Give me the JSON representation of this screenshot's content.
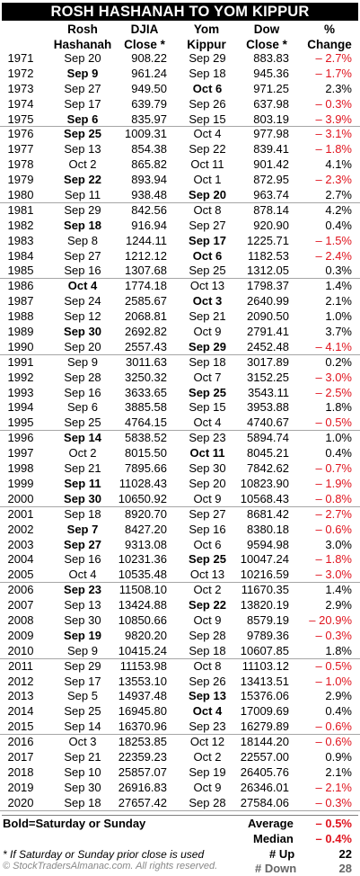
{
  "title": "ROSH HASHANAH TO YOM KIPPUR",
  "headers": {
    "year": "",
    "rosh_line1": "Rosh",
    "rosh_line2": "Hashanah",
    "djia_line1": "DJIA",
    "djia_line2": "Close *",
    "yom_line1": "Yom",
    "yom_line2": "Kippur",
    "dow_line1": "Dow",
    "dow_line2": "Close *",
    "pct_line1": "%",
    "pct_line2": "Change"
  },
  "rows": [
    {
      "year": "1971",
      "rosh": "Sep 20",
      "rosh_bold": false,
      "djia": "908.22",
      "yom": "Sep 29",
      "yom_bold": false,
      "dow": "883.83",
      "pct": "– 2.7%",
      "neg": true
    },
    {
      "year": "1972",
      "rosh": "Sep 9",
      "rosh_bold": true,
      "djia": "961.24",
      "yom": "Sep 18",
      "yom_bold": false,
      "dow": "945.36",
      "pct": "– 1.7%",
      "neg": true
    },
    {
      "year": "1973",
      "rosh": "Sep 27",
      "rosh_bold": false,
      "djia": "949.50",
      "yom": "Oct 6",
      "yom_bold": true,
      "dow": "971.25",
      "pct": "2.3%",
      "neg": false
    },
    {
      "year": "1974",
      "rosh": "Sep 17",
      "rosh_bold": false,
      "djia": "639.79",
      "yom": "Sep 26",
      "yom_bold": false,
      "dow": "637.98",
      "pct": "– 0.3%",
      "neg": true
    },
    {
      "year": "1975",
      "rosh": "Sep 6",
      "rosh_bold": true,
      "djia": "835.97",
      "yom": "Sep 15",
      "yom_bold": false,
      "dow": "803.19",
      "pct": "– 3.9%",
      "neg": true
    },
    {
      "year": "1976",
      "rosh": "Sep 25",
      "rosh_bold": true,
      "djia": "1009.31",
      "yom": "Oct 4",
      "yom_bold": false,
      "dow": "977.98",
      "pct": "– 3.1%",
      "neg": true
    },
    {
      "year": "1977",
      "rosh": "Sep 13",
      "rosh_bold": false,
      "djia": "854.38",
      "yom": "Sep 22",
      "yom_bold": false,
      "dow": "839.41",
      "pct": "– 1.8%",
      "neg": true
    },
    {
      "year": "1978",
      "rosh": "Oct 2",
      "rosh_bold": false,
      "djia": "865.82",
      "yom": "Oct 11",
      "yom_bold": false,
      "dow": "901.42",
      "pct": "4.1%",
      "neg": false
    },
    {
      "year": "1979",
      "rosh": "Sep 22",
      "rosh_bold": true,
      "djia": "893.94",
      "yom": "Oct 1",
      "yom_bold": false,
      "dow": "872.95",
      "pct": "– 2.3%",
      "neg": true
    },
    {
      "year": "1980",
      "rosh": "Sep 11",
      "rosh_bold": false,
      "djia": "938.48",
      "yom": "Sep 20",
      "yom_bold": true,
      "dow": "963.74",
      "pct": "2.7%",
      "neg": false
    },
    {
      "year": "1981",
      "rosh": "Sep 29",
      "rosh_bold": false,
      "djia": "842.56",
      "yom": "Oct 8",
      "yom_bold": false,
      "dow": "878.14",
      "pct": "4.2%",
      "neg": false
    },
    {
      "year": "1982",
      "rosh": "Sep 18",
      "rosh_bold": true,
      "djia": "916.94",
      "yom": "Sep 27",
      "yom_bold": false,
      "dow": "920.90",
      "pct": "0.4%",
      "neg": false
    },
    {
      "year": "1983",
      "rosh": "Sep 8",
      "rosh_bold": false,
      "djia": "1244.11",
      "yom": "Sep 17",
      "yom_bold": true,
      "dow": "1225.71",
      "pct": "– 1.5%",
      "neg": true
    },
    {
      "year": "1984",
      "rosh": "Sep 27",
      "rosh_bold": false,
      "djia": "1212.12",
      "yom": "Oct 6",
      "yom_bold": true,
      "dow": "1182.53",
      "pct": "– 2.4%",
      "neg": true
    },
    {
      "year": "1985",
      "rosh": "Sep 16",
      "rosh_bold": false,
      "djia": "1307.68",
      "yom": "Sep 25",
      "yom_bold": false,
      "dow": "1312.05",
      "pct": "0.3%",
      "neg": false
    },
    {
      "year": "1986",
      "rosh": "Oct 4",
      "rosh_bold": true,
      "djia": "1774.18",
      "yom": "Oct 13",
      "yom_bold": false,
      "dow": "1798.37",
      "pct": "1.4%",
      "neg": false
    },
    {
      "year": "1987",
      "rosh": "Sep 24",
      "rosh_bold": false,
      "djia": "2585.67",
      "yom": "Oct 3",
      "yom_bold": true,
      "dow": "2640.99",
      "pct": "2.1%",
      "neg": false
    },
    {
      "year": "1988",
      "rosh": "Sep 12",
      "rosh_bold": false,
      "djia": "2068.81",
      "yom": "Sep 21",
      "yom_bold": false,
      "dow": "2090.50",
      "pct": "1.0%",
      "neg": false
    },
    {
      "year": "1989",
      "rosh": "Sep 30",
      "rosh_bold": true,
      "djia": "2692.82",
      "yom": "Oct 9",
      "yom_bold": false,
      "dow": "2791.41",
      "pct": "3.7%",
      "neg": false
    },
    {
      "year": "1990",
      "rosh": "Sep 20",
      "rosh_bold": false,
      "djia": "2557.43",
      "yom": "Sep 29",
      "yom_bold": true,
      "dow": "2452.48",
      "pct": "– 4.1%",
      "neg": true
    },
    {
      "year": "1991",
      "rosh": "Sep 9",
      "rosh_bold": false,
      "djia": "3011.63",
      "yom": "Sep 18",
      "yom_bold": false,
      "dow": "3017.89",
      "pct": "0.2%",
      "neg": false
    },
    {
      "year": "1992",
      "rosh": "Sep 28",
      "rosh_bold": false,
      "djia": "3250.32",
      "yom": "Oct 7",
      "yom_bold": false,
      "dow": "3152.25",
      "pct": "– 3.0%",
      "neg": true
    },
    {
      "year": "1993",
      "rosh": "Sep 16",
      "rosh_bold": false,
      "djia": "3633.65",
      "yom": "Sep 25",
      "yom_bold": true,
      "dow": "3543.11",
      "pct": "– 2.5%",
      "neg": true
    },
    {
      "year": "1994",
      "rosh": "Sep 6",
      "rosh_bold": false,
      "djia": "3885.58",
      "yom": "Sep 15",
      "yom_bold": false,
      "dow": "3953.88",
      "pct": "1.8%",
      "neg": false
    },
    {
      "year": "1995",
      "rosh": "Sep 25",
      "rosh_bold": false,
      "djia": "4764.15",
      "yom": "Oct 4",
      "yom_bold": false,
      "dow": "4740.67",
      "pct": "– 0.5%",
      "neg": true
    },
    {
      "year": "1996",
      "rosh": "Sep 14",
      "rosh_bold": true,
      "djia": "5838.52",
      "yom": "Sep 23",
      "yom_bold": false,
      "dow": "5894.74",
      "pct": "1.0%",
      "neg": false
    },
    {
      "year": "1997",
      "rosh": "Oct 2",
      "rosh_bold": false,
      "djia": "8015.50",
      "yom": "Oct 11",
      "yom_bold": true,
      "dow": "8045.21",
      "pct": "0.4%",
      "neg": false
    },
    {
      "year": "1998",
      "rosh": "Sep 21",
      "rosh_bold": false,
      "djia": "7895.66",
      "yom": "Sep 30",
      "yom_bold": false,
      "dow": "7842.62",
      "pct": "– 0.7%",
      "neg": true
    },
    {
      "year": "1999",
      "rosh": "Sep 11",
      "rosh_bold": true,
      "djia": "11028.43",
      "yom": "Sep 20",
      "yom_bold": false,
      "dow": "10823.90",
      "pct": "– 1.9%",
      "neg": true
    },
    {
      "year": "2000",
      "rosh": "Sep 30",
      "rosh_bold": true,
      "djia": "10650.92",
      "yom": "Oct 9",
      "yom_bold": false,
      "dow": "10568.43",
      "pct": "– 0.8%",
      "neg": true
    },
    {
      "year": "2001",
      "rosh": "Sep 18",
      "rosh_bold": false,
      "djia": "8920.70",
      "yom": "Sep 27",
      "yom_bold": false,
      "dow": "8681.42",
      "pct": "– 2.7%",
      "neg": true
    },
    {
      "year": "2002",
      "rosh": "Sep 7",
      "rosh_bold": true,
      "djia": "8427.20",
      "yom": "Sep 16",
      "yom_bold": false,
      "dow": "8380.18",
      "pct": "– 0.6%",
      "neg": true
    },
    {
      "year": "2003",
      "rosh": "Sep 27",
      "rosh_bold": true,
      "djia": "9313.08",
      "yom": "Oct 6",
      "yom_bold": false,
      "dow": "9594.98",
      "pct": "3.0%",
      "neg": false
    },
    {
      "year": "2004",
      "rosh": "Sep 16",
      "rosh_bold": false,
      "djia": "10231.36",
      "yom": "Sep 25",
      "yom_bold": true,
      "dow": "10047.24",
      "pct": "– 1.8%",
      "neg": true
    },
    {
      "year": "2005",
      "rosh": "Oct 4",
      "rosh_bold": false,
      "djia": "10535.48",
      "yom": "Oct 13",
      "yom_bold": false,
      "dow": "10216.59",
      "pct": "– 3.0%",
      "neg": true
    },
    {
      "year": "2006",
      "rosh": "Sep 23",
      "rosh_bold": true,
      "djia": "11508.10",
      "yom": "Oct 2",
      "yom_bold": false,
      "dow": "11670.35",
      "pct": "1.4%",
      "neg": false
    },
    {
      "year": "2007",
      "rosh": "Sep 13",
      "rosh_bold": false,
      "djia": "13424.88",
      "yom": "Sep 22",
      "yom_bold": true,
      "dow": "13820.19",
      "pct": "2.9%",
      "neg": false
    },
    {
      "year": "2008",
      "rosh": "Sep 30",
      "rosh_bold": false,
      "djia": "10850.66",
      "yom": "Oct 9",
      "yom_bold": false,
      "dow": "8579.19",
      "pct": "– 20.9%",
      "neg": true
    },
    {
      "year": "2009",
      "rosh": "Sep 19",
      "rosh_bold": true,
      "djia": "9820.20",
      "yom": "Sep 28",
      "yom_bold": false,
      "dow": "9789.36",
      "pct": "– 0.3%",
      "neg": true
    },
    {
      "year": "2010",
      "rosh": "Sep 9",
      "rosh_bold": false,
      "djia": "10415.24",
      "yom": "Sep 18",
      "yom_bold": false,
      "dow": "10607.85",
      "pct": "1.8%",
      "neg": false
    },
    {
      "year": "2011",
      "rosh": "Sep 29",
      "rosh_bold": false,
      "djia": "11153.98",
      "yom": "Oct 8",
      "yom_bold": false,
      "dow": "11103.12",
      "pct": "– 0.5%",
      "neg": true
    },
    {
      "year": "2012",
      "rosh": "Sep 17",
      "rosh_bold": false,
      "djia": "13553.10",
      "yom": "Sep 26",
      "yom_bold": false,
      "dow": "13413.51",
      "pct": "– 1.0%",
      "neg": true
    },
    {
      "year": "2013",
      "rosh": "Sep 5",
      "rosh_bold": false,
      "djia": "14937.48",
      "yom": "Sep 13",
      "yom_bold": true,
      "dow": "15376.06",
      "pct": "2.9%",
      "neg": false
    },
    {
      "year": "2014",
      "rosh": "Sep 25",
      "rosh_bold": false,
      "djia": "16945.80",
      "yom": "Oct 4",
      "yom_bold": true,
      "dow": "17009.69",
      "pct": "0.4%",
      "neg": false
    },
    {
      "year": "2015",
      "rosh": "Sep 14",
      "rosh_bold": false,
      "djia": "16370.96",
      "yom": "Sep 23",
      "yom_bold": false,
      "dow": "16279.89",
      "pct": "– 0.6%",
      "neg": true
    },
    {
      "year": "2016",
      "rosh": "Oct 3",
      "rosh_bold": false,
      "djia": "18253.85",
      "yom": "Oct 12",
      "yom_bold": false,
      "dow": "18144.20",
      "pct": "– 0.6%",
      "neg": true
    },
    {
      "year": "2017",
      "rosh": "Sep 21",
      "rosh_bold": false,
      "djia": "22359.23",
      "yom": "Oct 2",
      "yom_bold": false,
      "dow": "22557.00",
      "pct": "0.9%",
      "neg": false
    },
    {
      "year": "2018",
      "rosh": "Sep 10",
      "rosh_bold": false,
      "djia": "25857.07",
      "yom": "Sep 19",
      "yom_bold": false,
      "dow": "26405.76",
      "pct": "2.1%",
      "neg": false
    },
    {
      "year": "2019",
      "rosh": "Sep 30",
      "rosh_bold": false,
      "djia": "26916.83",
      "yom": "Oct 9",
      "yom_bold": false,
      "dow": "26346.01",
      "pct": "– 2.1%",
      "neg": true
    },
    {
      "year": "2020",
      "rosh": "Sep 18",
      "rosh_bold": false,
      "djia": "27657.42",
      "yom": "Sep 28",
      "yom_bold": false,
      "dow": "27584.06",
      "pct": "– 0.3%",
      "neg": true
    }
  ],
  "legend": "Bold=Saturday or Sunday",
  "footnote": "* If Saturday or Sunday prior close is used",
  "copyright": "© StockTradersAlmanac.com. All rights reserved.",
  "summary": {
    "average_label": "Average",
    "average_value": "– 0.5%",
    "median_label": "Median",
    "median_value": "– 0.4%",
    "up_label": "# Up",
    "up_value": "22",
    "down_label": "# Down",
    "down_value": "28"
  },
  "colors": {
    "negative": "#e0141e",
    "title_bg": "#000000",
    "title_fg": "#ffffff"
  }
}
